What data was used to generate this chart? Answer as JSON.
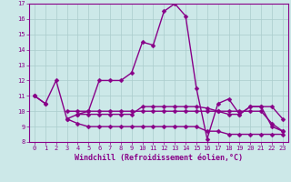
{
  "x": [
    0,
    1,
    2,
    3,
    4,
    5,
    6,
    7,
    8,
    9,
    10,
    11,
    12,
    13,
    14,
    15,
    16,
    17,
    18,
    19,
    20,
    21,
    22,
    23
  ],
  "line_main": [
    11,
    10.5,
    12.0,
    9.5,
    9.8,
    10.0,
    12.0,
    12.0,
    12.0,
    12.5,
    14.5,
    14.3,
    16.5,
    17.0,
    16.2,
    11.5,
    8.2,
    10.5,
    10.8,
    9.8,
    10.3,
    10.3,
    9.0,
    8.7
  ],
  "line_a": [
    11,
    10.5,
    null,
    null,
    null,
    null,
    null,
    null,
    null,
    null,
    null,
    null,
    null,
    null,
    null,
    null,
    null,
    null,
    null,
    null,
    null,
    null,
    null,
    null
  ],
  "line_b": [
    null,
    null,
    null,
    10.0,
    10.0,
    10.0,
    10.0,
    10.0,
    10.0,
    10.0,
    10.0,
    10.0,
    10.0,
    10.0,
    10.0,
    10.0,
    10.0,
    10.0,
    10.0,
    10.0,
    10.0,
    10.0,
    9.2,
    8.7
  ],
  "line_c": [
    null,
    null,
    null,
    9.5,
    9.2,
    9.0,
    9.0,
    9.0,
    9.0,
    9.0,
    9.0,
    9.0,
    9.0,
    9.0,
    9.0,
    9.0,
    8.7,
    8.7,
    8.5,
    8.5,
    8.5,
    8.5,
    8.5,
    8.5
  ],
  "line_d": [
    null,
    null,
    null,
    null,
    9.8,
    9.8,
    9.8,
    9.8,
    9.8,
    9.8,
    10.3,
    10.3,
    10.3,
    10.3,
    10.3,
    10.3,
    10.2,
    10.0,
    9.8,
    9.8,
    10.3,
    10.3,
    10.3,
    9.5
  ],
  "ylim": [
    8,
    17
  ],
  "xlim": [
    -0.5,
    23.5
  ],
  "yticks": [
    8,
    9,
    10,
    11,
    12,
    13,
    14,
    15,
    16,
    17
  ],
  "xticks": [
    0,
    1,
    2,
    3,
    4,
    5,
    6,
    7,
    8,
    9,
    10,
    11,
    12,
    13,
    14,
    15,
    16,
    17,
    18,
    19,
    20,
    21,
    22,
    23
  ],
  "xlabel": "Windchill (Refroidissement éolien,°C)",
  "bg_color": "#cce8e8",
  "line_color": "#880088",
  "grid_color": "#aacccc",
  "markersize": 2.5,
  "linewidth": 1.0,
  "tick_fontsize": 5.0,
  "label_fontsize": 6.0
}
